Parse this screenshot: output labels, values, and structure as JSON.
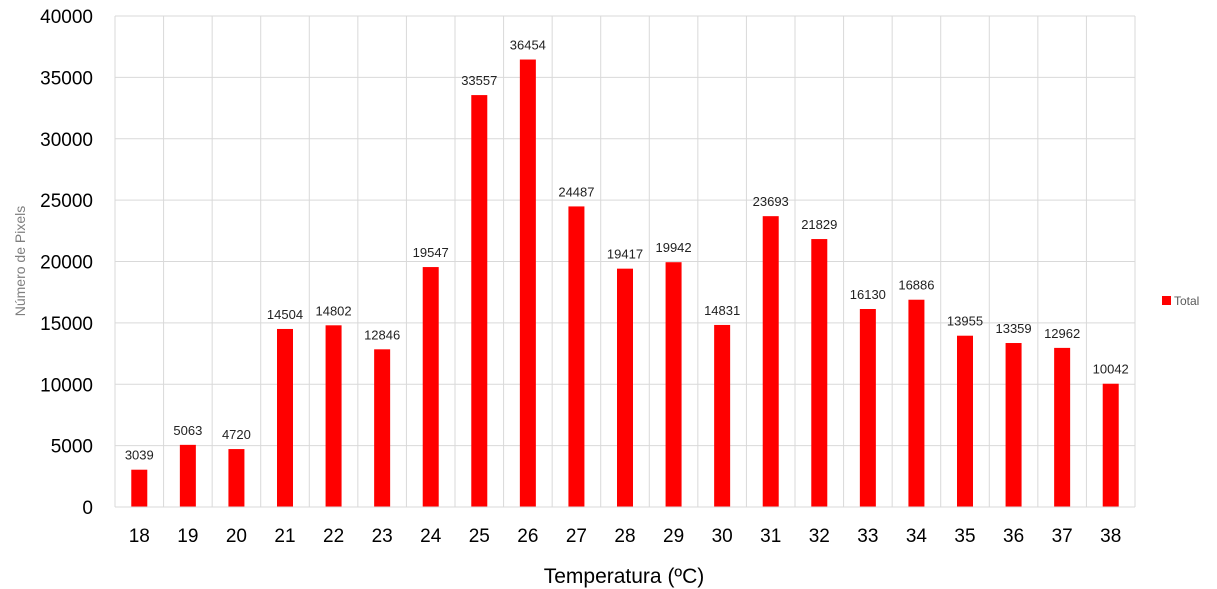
{
  "chart_data": {
    "type": "bar",
    "categories": [
      "18",
      "19",
      "20",
      "21",
      "22",
      "23",
      "24",
      "25",
      "26",
      "27",
      "28",
      "29",
      "30",
      "31",
      "32",
      "33",
      "34",
      "35",
      "36",
      "37",
      "38"
    ],
    "series": [
      {
        "name": "Total",
        "color": "#ff0000",
        "values": [
          3039,
          5063,
          4720,
          14504,
          14802,
          12846,
          19547,
          33557,
          36454,
          24487,
          19417,
          19942,
          14831,
          23693,
          21829,
          16130,
          16886,
          13955,
          13359,
          12962,
          10042
        ]
      }
    ],
    "xlabel": "Temperatura (ºC)",
    "ylabel": "Número de Pixels",
    "ylim": [
      0,
      40000
    ],
    "yticks": [
      0,
      5000,
      10000,
      15000,
      20000,
      25000,
      30000,
      35000,
      40000
    ],
    "grid": true,
    "data_labels": true,
    "legend_position": "right"
  }
}
